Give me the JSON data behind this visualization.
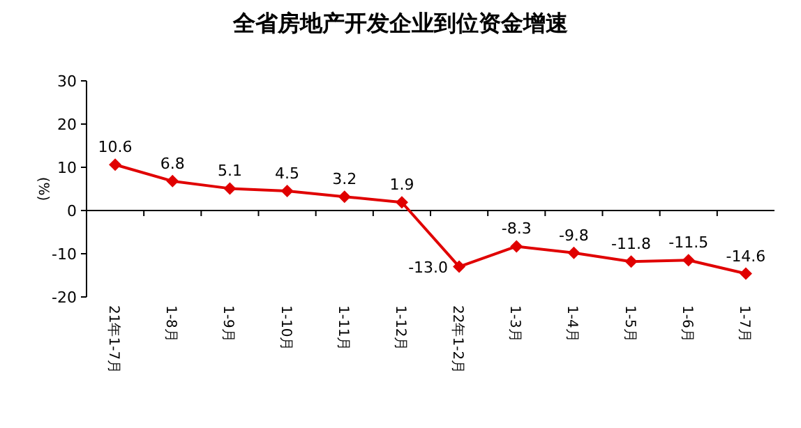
{
  "chart_data": {
    "type": "line",
    "title": "全省房地产开发企业到位资金增速",
    "ylabel": "(%)",
    "categories": [
      "21年1-7月",
      "1-8月",
      "1-9月",
      "1-10月",
      "1-11月",
      "1-12月",
      "22年1-2月",
      "1-3月",
      "1-4月",
      "1-5月",
      "1-6月",
      "1-7月"
    ],
    "series": [
      {
        "color": "#e00000",
        "values": [
          10.6,
          6.8,
          5.1,
          4.5,
          3.2,
          1.9,
          -13.0,
          -8.3,
          -9.8,
          -11.8,
          -11.5,
          -14.6
        ],
        "value_labels": [
          "10.6",
          "6.8",
          "5.1",
          "4.5",
          "3.2",
          "1.9",
          "-13.0",
          "-8.3",
          "-9.8",
          "-11.8",
          "-11.5",
          "-14.6"
        ]
      }
    ],
    "ylim": [
      -20,
      30
    ],
    "yticks": [
      -20,
      -10,
      0,
      10,
      20,
      30
    ],
    "ref_lines": [
      {
        "axis": "y",
        "value": 0,
        "color": "#000000"
      }
    ],
    "marker": "diamond",
    "line_style": "solid",
    "grid": false
  }
}
